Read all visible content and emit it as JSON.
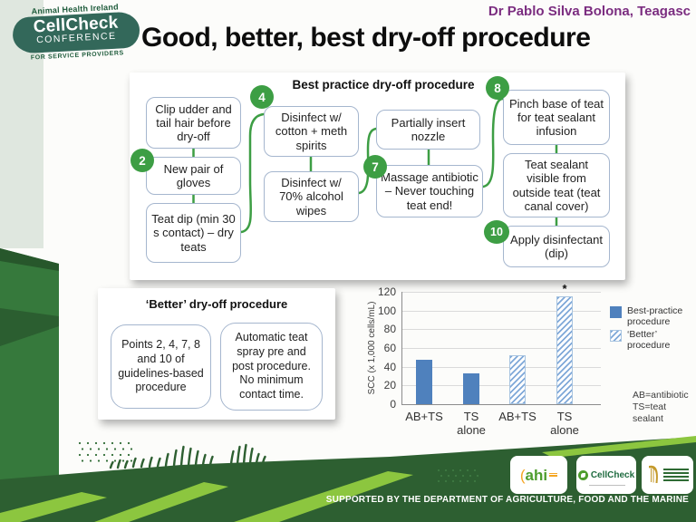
{
  "header": {
    "logo_top": "Animal Health Ireland",
    "logo_main": "CellCheck",
    "logo_sub": "CONFERENCE",
    "logo_bottom": "FOR SERVICE PROVIDERS",
    "presenter": "Dr Pablo Silva Bolona, Teagasc",
    "title": "Good, better, best dry-off procedure"
  },
  "flowchart": {
    "title": "Best practice dry-off procedure",
    "steps": [
      "2",
      "4",
      "7",
      "8",
      "10"
    ],
    "boxes": [
      "Clip udder and tail hair before dry-off",
      "New pair of gloves",
      "Teat dip (min 30 s contact) – dry teats",
      "Disinfect w/ cotton + meth spirits",
      "Disinfect w/ 70% alcohol wipes",
      "Partially insert nozzle",
      "Massage antibiotic – Never touching teat end!",
      "Pinch base of teat for teat sealant infusion",
      "Teat sealant visible from outside teat (teat canal cover)",
      "Apply disinfectant (dip)"
    ]
  },
  "better_panel": {
    "title": "‘Better’ dry-off procedure",
    "boxes": [
      "Points 2, 4, 7, 8 and 10 of guidelines-based procedure",
      "Automatic teat spray pre and post procedure. No minimum contact time."
    ]
  },
  "chart_data": {
    "type": "bar",
    "categories": [
      "AB+TS",
      "TS alone",
      "AB+TS",
      "TS alone"
    ],
    "series": [
      {
        "name": "Best-practice procedure",
        "style": "solid",
        "color": "#4F81BD",
        "values": [
          47,
          33,
          null,
          null
        ]
      },
      {
        "name": "‘Better’ procedure",
        "style": "hatched",
        "color": "#7FA8D8",
        "values": [
          null,
          null,
          52,
          115
        ]
      }
    ],
    "ylabel": "SCC (x 1,000 cells/mL)",
    "ylim": [
      0,
      120
    ],
    "ytick_step": 20,
    "grid": true,
    "legend_position": "right",
    "annotations": [
      {
        "category_index": 3,
        "text": "*"
      }
    ],
    "notes": [
      "AB=antibiotic",
      "TS=teat sealant"
    ]
  },
  "footer": {
    "colors": {
      "band_green": "#2D5F31",
      "accent_light_green": "#8CC63F"
    },
    "logo_ahi": "ahi",
    "logo_cellcheck": "CellCheck",
    "supported": "SUPPORTED BY THE DEPARTMENT OF AGRICULTURE, FOOD AND THE MARINE"
  }
}
